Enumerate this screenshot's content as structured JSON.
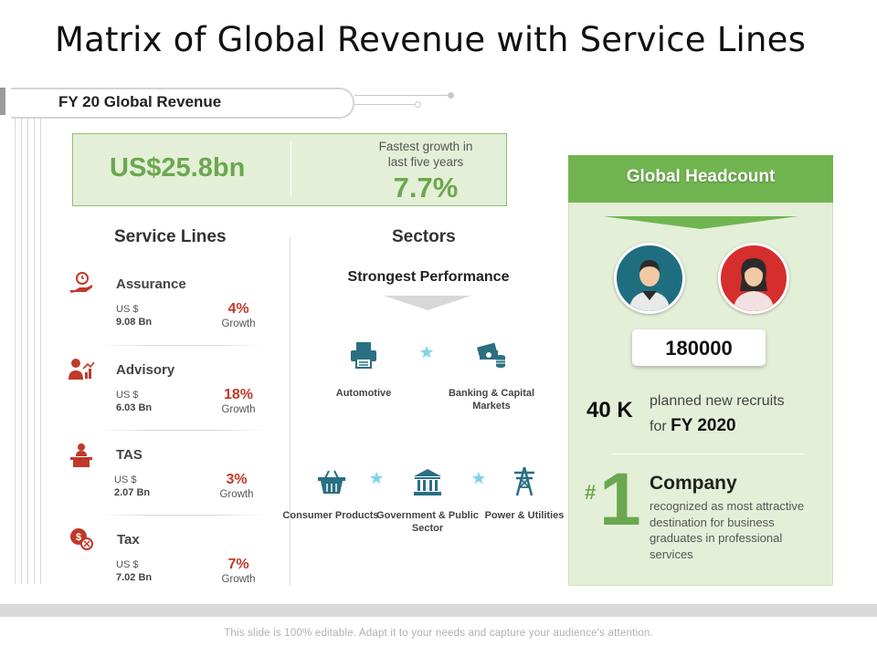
{
  "title": "Matrix of Global Revenue with Service Lines",
  "fy_banner": {
    "label": "FY 20 Global Revenue"
  },
  "revenue": {
    "value": "US$25.8bn",
    "growth_caption": "Fastest growth in last five years",
    "growth_value": "7.7%"
  },
  "service_lines": {
    "heading": "Service Lines",
    "items": [
      {
        "name": "Assurance",
        "currency": "US $",
        "amount": "9.08 Bn",
        "pct": "4%",
        "growth_label": "Growth",
        "icon": "hand-coin-icon"
      },
      {
        "name": "Advisory",
        "currency": "US $",
        "amount": "6.03 Bn",
        "pct": "18%",
        "growth_label": "Growth",
        "icon": "advisor-chart-icon"
      },
      {
        "name": "TAS",
        "currency": "US $",
        "amount": "2.07 Bn",
        "pct": "3%",
        "growth_label": "Growth",
        "icon": "presenter-podium-icon"
      },
      {
        "name": "Tax",
        "currency": "US $",
        "amount": "7.02 Bn",
        "pct": "7%",
        "growth_label": "Growth",
        "icon": "tax-coin-icon"
      }
    ]
  },
  "sectors": {
    "heading": "Sectors",
    "subheading": "Strongest Performance",
    "items": [
      {
        "label": "Automotive",
        "icon": "printer-icon"
      },
      {
        "label": "Banking & Capital Markets",
        "icon": "money-stack-icon"
      },
      {
        "label": "Consumer Products",
        "icon": "basket-icon"
      },
      {
        "label": "Government & Public Sector",
        "icon": "government-building-icon"
      },
      {
        "label": "Power & Utilities",
        "icon": "power-tower-icon"
      }
    ]
  },
  "headcount": {
    "title": "Global Headcount",
    "count": "180000",
    "recruits_number": "40 K",
    "recruits_text_1": "planned new recruits",
    "recruits_text_2": "for ",
    "recruits_year": "FY 2020",
    "rank_symbol": "#",
    "rank_number": "1",
    "company_title": "Company",
    "company_desc": "recognized as most attractive destination for business graduates in professional services"
  },
  "colors": {
    "green": "#6aa84f",
    "panel_green": "#e4efd8",
    "header_green": "#71b551",
    "red": "#c0392b",
    "teal": "#1f6e7f"
  },
  "footer": {
    "text": "This slide is 100% editable. Adapt it to your needs and capture your audience's attention."
  }
}
